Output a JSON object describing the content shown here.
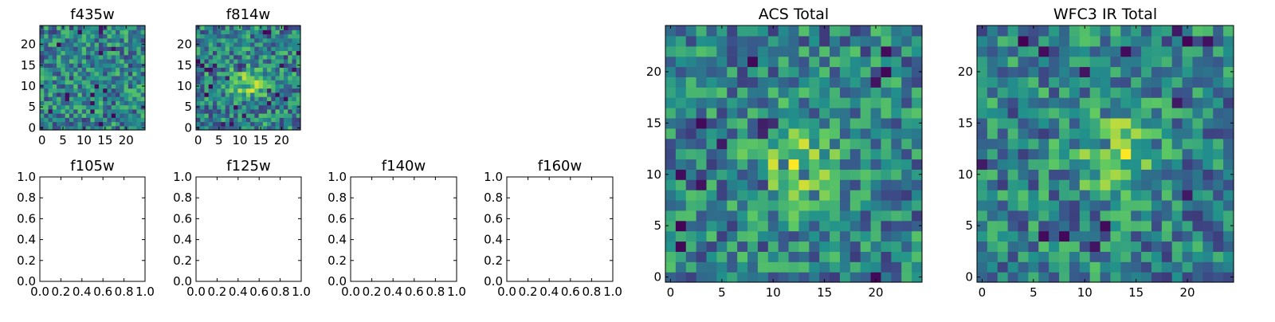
{
  "colormap": [
    "#440154",
    "#3b528b",
    "#21918c",
    "#5ec962",
    "#fde725"
  ],
  "chart_data": [
    {
      "type": "heatmap",
      "title": "f435w",
      "x_ticks": [
        0,
        5,
        10,
        15,
        20
      ],
      "y_ticks": [
        0,
        5,
        10,
        15,
        20
      ],
      "xlim": [
        -0.5,
        24.5
      ],
      "ylim": [
        -0.5,
        24.5
      ],
      "grid_size": [
        25,
        25
      ],
      "appearance": "noise",
      "seed": 11
    },
    {
      "type": "heatmap",
      "title": "f814w",
      "x_ticks": [
        0,
        5,
        10,
        15,
        20
      ],
      "y_ticks": [
        0,
        5,
        10,
        15,
        20
      ],
      "xlim": [
        -0.5,
        24.5
      ],
      "ylim": [
        -0.5,
        24.5
      ],
      "grid_size": [
        25,
        25
      ],
      "appearance": "central bright source near x 12, y 11",
      "seed": 23
    },
    {
      "type": "empty",
      "title": "f105w",
      "x_ticks": [
        "0.0",
        "0.2",
        "0.4",
        "0.6",
        "0.8",
        "1.0"
      ],
      "y_ticks": [
        "0.0",
        "0.2",
        "0.4",
        "0.6",
        "0.8",
        "1.0"
      ],
      "xlim": [
        0,
        1
      ],
      "ylim": [
        0,
        1
      ]
    },
    {
      "type": "empty",
      "title": "f125w",
      "x_ticks": [
        "0.0",
        "0.2",
        "0.4",
        "0.6",
        "0.8",
        "1.0"
      ],
      "y_ticks": [
        "0.0",
        "0.2",
        "0.4",
        "0.6",
        "0.8",
        "1.0"
      ],
      "xlim": [
        0,
        1
      ],
      "ylim": [
        0,
        1
      ]
    },
    {
      "type": "empty",
      "title": "f140w",
      "x_ticks": [
        "0.0",
        "0.2",
        "0.4",
        "0.6",
        "0.8",
        "1.0"
      ],
      "y_ticks": [
        "0.0",
        "0.2",
        "0.4",
        "0.6",
        "0.8",
        "1.0"
      ],
      "xlim": [
        0,
        1
      ],
      "ylim": [
        0,
        1
      ]
    },
    {
      "type": "empty",
      "title": "f160w",
      "x_ticks": [
        "0.0",
        "0.2",
        "0.4",
        "0.6",
        "0.8",
        "1.0"
      ],
      "y_ticks": [
        "0.0",
        "0.2",
        "0.4",
        "0.6",
        "0.8",
        "1.0"
      ],
      "xlim": [
        0,
        1
      ],
      "ylim": [
        0,
        1
      ]
    },
    {
      "type": "heatmap",
      "title": "ACS Total",
      "x_ticks": [
        0,
        5,
        10,
        15,
        20
      ],
      "y_ticks": [
        0,
        5,
        10,
        15,
        20
      ],
      "xlim": [
        -0.5,
        24.5
      ],
      "ylim": [
        -0.5,
        24.5
      ],
      "grid_size": [
        25,
        25
      ],
      "appearance": "central bright source near x 12, y 11",
      "seed": 37
    },
    {
      "type": "heatmap",
      "title": "WFC3 IR Total",
      "x_ticks": [
        0,
        5,
        10,
        15,
        20
      ],
      "y_ticks": [
        0,
        5,
        10,
        15,
        20
      ],
      "xlim": [
        -0.5,
        24.5
      ],
      "ylim": [
        -0.5,
        24.5
      ],
      "grid_size": [
        25,
        25
      ],
      "appearance": "central bright source near x 13, y 12",
      "seed": 53
    }
  ]
}
